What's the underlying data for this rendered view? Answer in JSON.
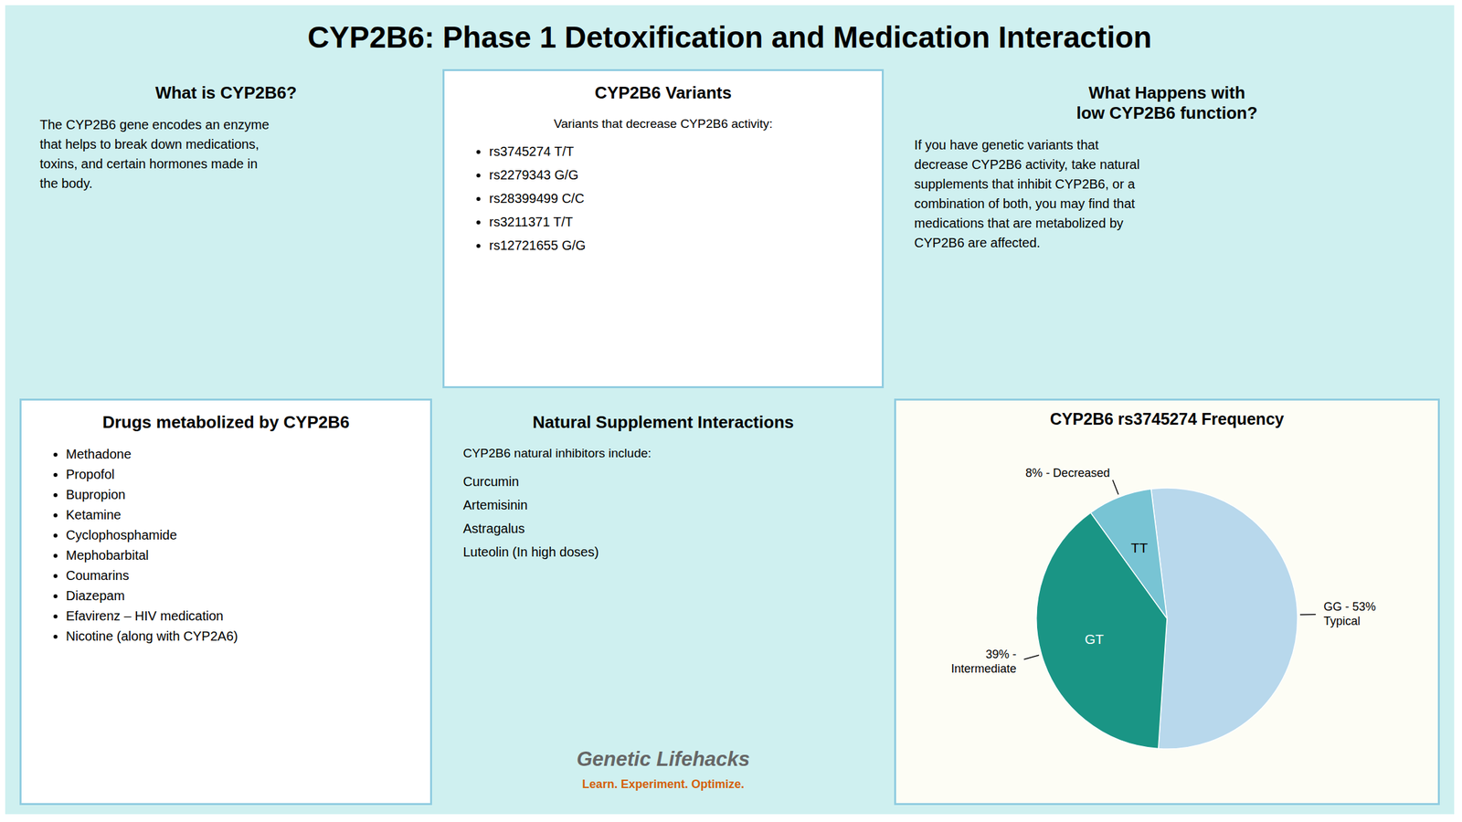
{
  "chart_data": {
    "type": "pie",
    "title": "CYP2B6: Phase 1 Detoxification and Medication Interaction",
    "subtitle": "CYP2B6 rs3745274 Frequency",
    "categories": [
      null,
      "GT",
      "TT"
    ],
    "values": [
      53,
      39,
      8
    ],
    "value_labels": [
      "GG - 53%\nTypical",
      "39% -\nIntermediate",
      "8% - Decreased"
    ],
    "colors": [
      "#b8d8ec",
      "#1a9585",
      "#78c4d4"
    ],
    "annotations": [
      {
        "title": "What is CYP2B6?",
        "text": "The CYP2B6 gene encodes an enzyme\nthat helps to break down medications,\ntoxins, and certain hormones made in\nthe body."
      },
      {
        "title": "CYP2B6 Variants",
        "text": "Variants that decrease CYP2B6 activity:",
        "items": [
          "rs3745274 T/T",
          "rs2279343 G/G",
          "rs28399499 C/C",
          "rs3211371 T/T",
          "rs12721655 G/G"
        ]
      },
      {
        "title": "What Happens with\nlow CYP2B6 function?",
        "text": "If you have genetic variants that\ndecrease CYP2B6 activity, take natural\nsupplements that inhibit CYP2B6, or a\ncombination of both, you may find that\nmedications that are metabolized by\nCYP2B6 are affected."
      },
      {
        "title": "Drugs metabolized by CYP2B6",
        "items": [
          "Methadone",
          "Propofol",
          "Bupropion",
          "Ketamine",
          "Cyclophosphamide",
          "Mephobarbital",
          "Coumarins",
          "Diazepam",
          "Efavirenz – HIV medication",
          "Nicotine (along with CYP2A6)"
        ]
      },
      {
        "title": "Natural Supplement Interactions",
        "text": "CYP2B6 natural inhibitors include:",
        "items": [
          "Curcumin",
          "Artemisinin",
          "Astragalus",
          "Luteolin (In high doses)"
        ],
        "footer": [
          "Genetic Lifehacks",
          "Learn. Experiment. Optimize."
        ]
      }
    ]
  }
}
